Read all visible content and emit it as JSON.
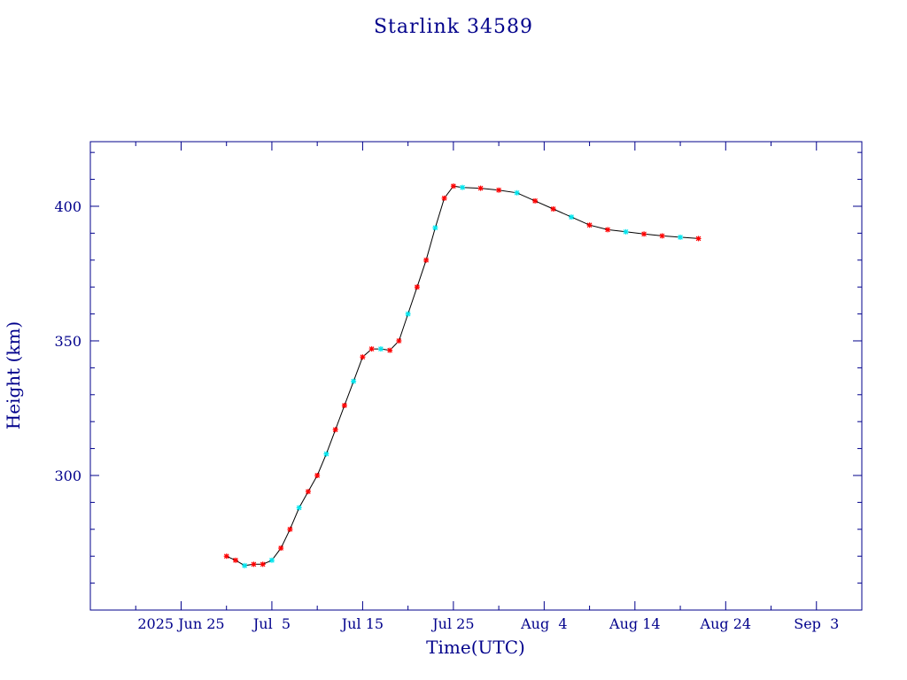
{
  "colors": {
    "axis": "#00008b",
    "text": "#00008b",
    "marker_red": "#ff0000",
    "marker_cyan": "#00e5ee",
    "line": "#000000",
    "background": "#ffffff"
  },
  "chart_data": {
    "type": "line",
    "title": "Starlink 34589",
    "xlabel": "Time(UTC)",
    "ylabel": "Height (km)",
    "x_tick_labels": [
      "2025 Jun 25",
      "Jul  5",
      "Jul 15",
      "Jul 25",
      "Aug  4",
      "Aug 14",
      "Aug 24",
      "Sep  3"
    ],
    "y_tick_labels": [
      "300",
      "350",
      "400"
    ],
    "x_ticks": [
      "2025-06-25",
      "2025-07-05",
      "2025-07-15",
      "2025-07-25",
      "2025-08-04",
      "2025-08-14",
      "2025-08-24",
      "2025-09-03"
    ],
    "y_ticks": [
      300,
      350,
      400
    ],
    "xlim": [
      "2025-06-15",
      "2025-09-08"
    ],
    "ylim": [
      250,
      424
    ],
    "grid": false,
    "series": [
      {
        "marker": "asterisk",
        "marker_colors": [
          "red",
          "cyan"
        ],
        "points": [
          [
            "2025-06-30",
            270
          ],
          [
            "2025-07-01",
            268.5
          ],
          [
            "2025-07-02",
            266.5
          ],
          [
            "2025-07-03",
            267
          ],
          [
            "2025-07-04",
            267
          ],
          [
            "2025-07-05",
            268.5
          ],
          [
            "2025-07-06",
            273
          ],
          [
            "2025-07-07",
            280
          ],
          [
            "2025-07-08",
            288
          ],
          [
            "2025-07-09",
            294
          ],
          [
            "2025-07-10",
            300
          ],
          [
            "2025-07-11",
            308
          ],
          [
            "2025-07-12",
            317
          ],
          [
            "2025-07-13",
            326
          ],
          [
            "2025-07-14",
            335
          ],
          [
            "2025-07-15",
            344
          ],
          [
            "2025-07-16",
            347
          ],
          [
            "2025-07-17",
            347
          ],
          [
            "2025-07-18",
            346.5
          ],
          [
            "2025-07-19",
            350
          ],
          [
            "2025-07-20",
            360
          ],
          [
            "2025-07-21",
            370
          ],
          [
            "2025-07-22",
            380
          ],
          [
            "2025-07-23",
            392
          ],
          [
            "2025-07-24",
            403
          ],
          [
            "2025-07-25",
            407.5
          ],
          [
            "2025-07-26",
            407
          ],
          [
            "2025-07-28",
            406.7
          ],
          [
            "2025-07-30",
            406
          ],
          [
            "2025-08-01",
            405
          ],
          [
            "2025-08-03",
            402
          ],
          [
            "2025-08-05",
            399
          ],
          [
            "2025-08-07",
            396
          ],
          [
            "2025-08-09",
            393
          ],
          [
            "2025-08-11",
            391.3
          ],
          [
            "2025-08-13",
            390.5
          ],
          [
            "2025-08-15",
            389.7
          ],
          [
            "2025-08-17",
            389
          ],
          [
            "2025-08-19",
            388.5
          ],
          [
            "2025-08-21",
            388
          ]
        ]
      }
    ]
  }
}
